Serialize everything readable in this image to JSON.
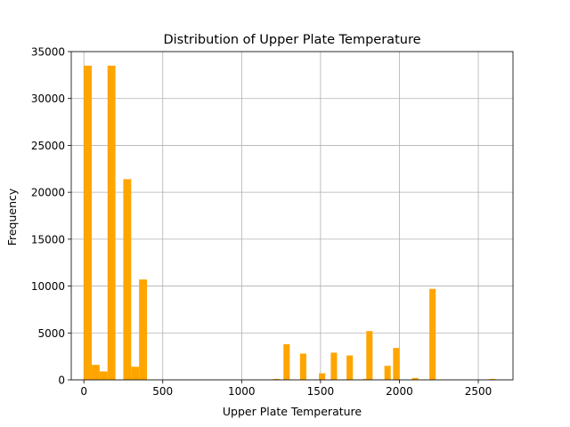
{
  "chart_data": {
    "type": "bar",
    "title": "Distribution of Upper Plate Temperature",
    "xlabel": "Upper Plate Temperature",
    "ylabel": "Frequency",
    "xlim": [
      -80,
      2720
    ],
    "ylim": [
      0,
      35000
    ],
    "xticks": [
      0,
      500,
      1000,
      1500,
      2000,
      2500
    ],
    "yticks": [
      0,
      5000,
      10000,
      15000,
      20000,
      25000,
      30000,
      35000
    ],
    "grid": true,
    "bar_color": "#FFA500",
    "bins": [
      {
        "x0": 0,
        "x1": 50,
        "value": 33500
      },
      {
        "x0": 50,
        "x1": 100,
        "value": 1600
      },
      {
        "x0": 100,
        "x1": 150,
        "value": 900
      },
      {
        "x0": 150,
        "x1": 200,
        "value": 33500
      },
      {
        "x0": 250,
        "x1": 300,
        "value": 21400
      },
      {
        "x0": 300,
        "x1": 350,
        "value": 1400
      },
      {
        "x0": 350,
        "x1": 400,
        "value": 10700
      },
      {
        "x0": 1200,
        "x1": 1240,
        "value": 100
      },
      {
        "x0": 1265,
        "x1": 1305,
        "value": 3800
      },
      {
        "x0": 1370,
        "x1": 1410,
        "value": 2800
      },
      {
        "x0": 1490,
        "x1": 1530,
        "value": 700
      },
      {
        "x0": 1565,
        "x1": 1605,
        "value": 2900
      },
      {
        "x0": 1665,
        "x1": 1705,
        "value": 2600
      },
      {
        "x0": 1770,
        "x1": 1790,
        "value": 100
      },
      {
        "x0": 1790,
        "x1": 1830,
        "value": 5200
      },
      {
        "x0": 1905,
        "x1": 1945,
        "value": 1500
      },
      {
        "x0": 1960,
        "x1": 2000,
        "value": 3400
      },
      {
        "x0": 2080,
        "x1": 2120,
        "value": 200
      },
      {
        "x0": 2190,
        "x1": 2230,
        "value": 9700
      },
      {
        "x0": 2570,
        "x1": 2610,
        "value": 100
      }
    ]
  }
}
